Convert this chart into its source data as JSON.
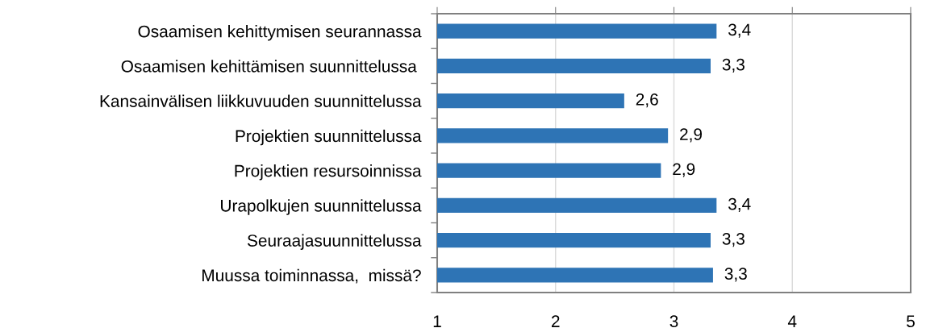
{
  "chart_data": {
    "type": "bar",
    "orientation": "horizontal",
    "categories": [
      "Osaamisen kehittymisen seurannassa",
      "Osaamisen kehittämisen suunnittelussa ",
      "Kansainvälisen liikkuvuuden suunnittelussa",
      "Projektien suunnittelussa",
      "Projektien resursoinnissa",
      "Urapolkujen suunnittelussa",
      "Seuraajasuunnittelussa",
      "Muussa toiminnassa,  missä?"
    ],
    "values": [
      3.36,
      3.31,
      2.58,
      2.95,
      2.89,
      3.36,
      3.31,
      3.33
    ],
    "value_labels": [
      "3,4",
      "3,3",
      "2,6",
      "2,9",
      "2,9",
      "3,4",
      "3,3",
      "3,3"
    ],
    "color": "#2e74b5",
    "xlim": [
      1,
      5
    ],
    "xticks": [
      1,
      2,
      3,
      4,
      5
    ],
    "grid": "x"
  }
}
